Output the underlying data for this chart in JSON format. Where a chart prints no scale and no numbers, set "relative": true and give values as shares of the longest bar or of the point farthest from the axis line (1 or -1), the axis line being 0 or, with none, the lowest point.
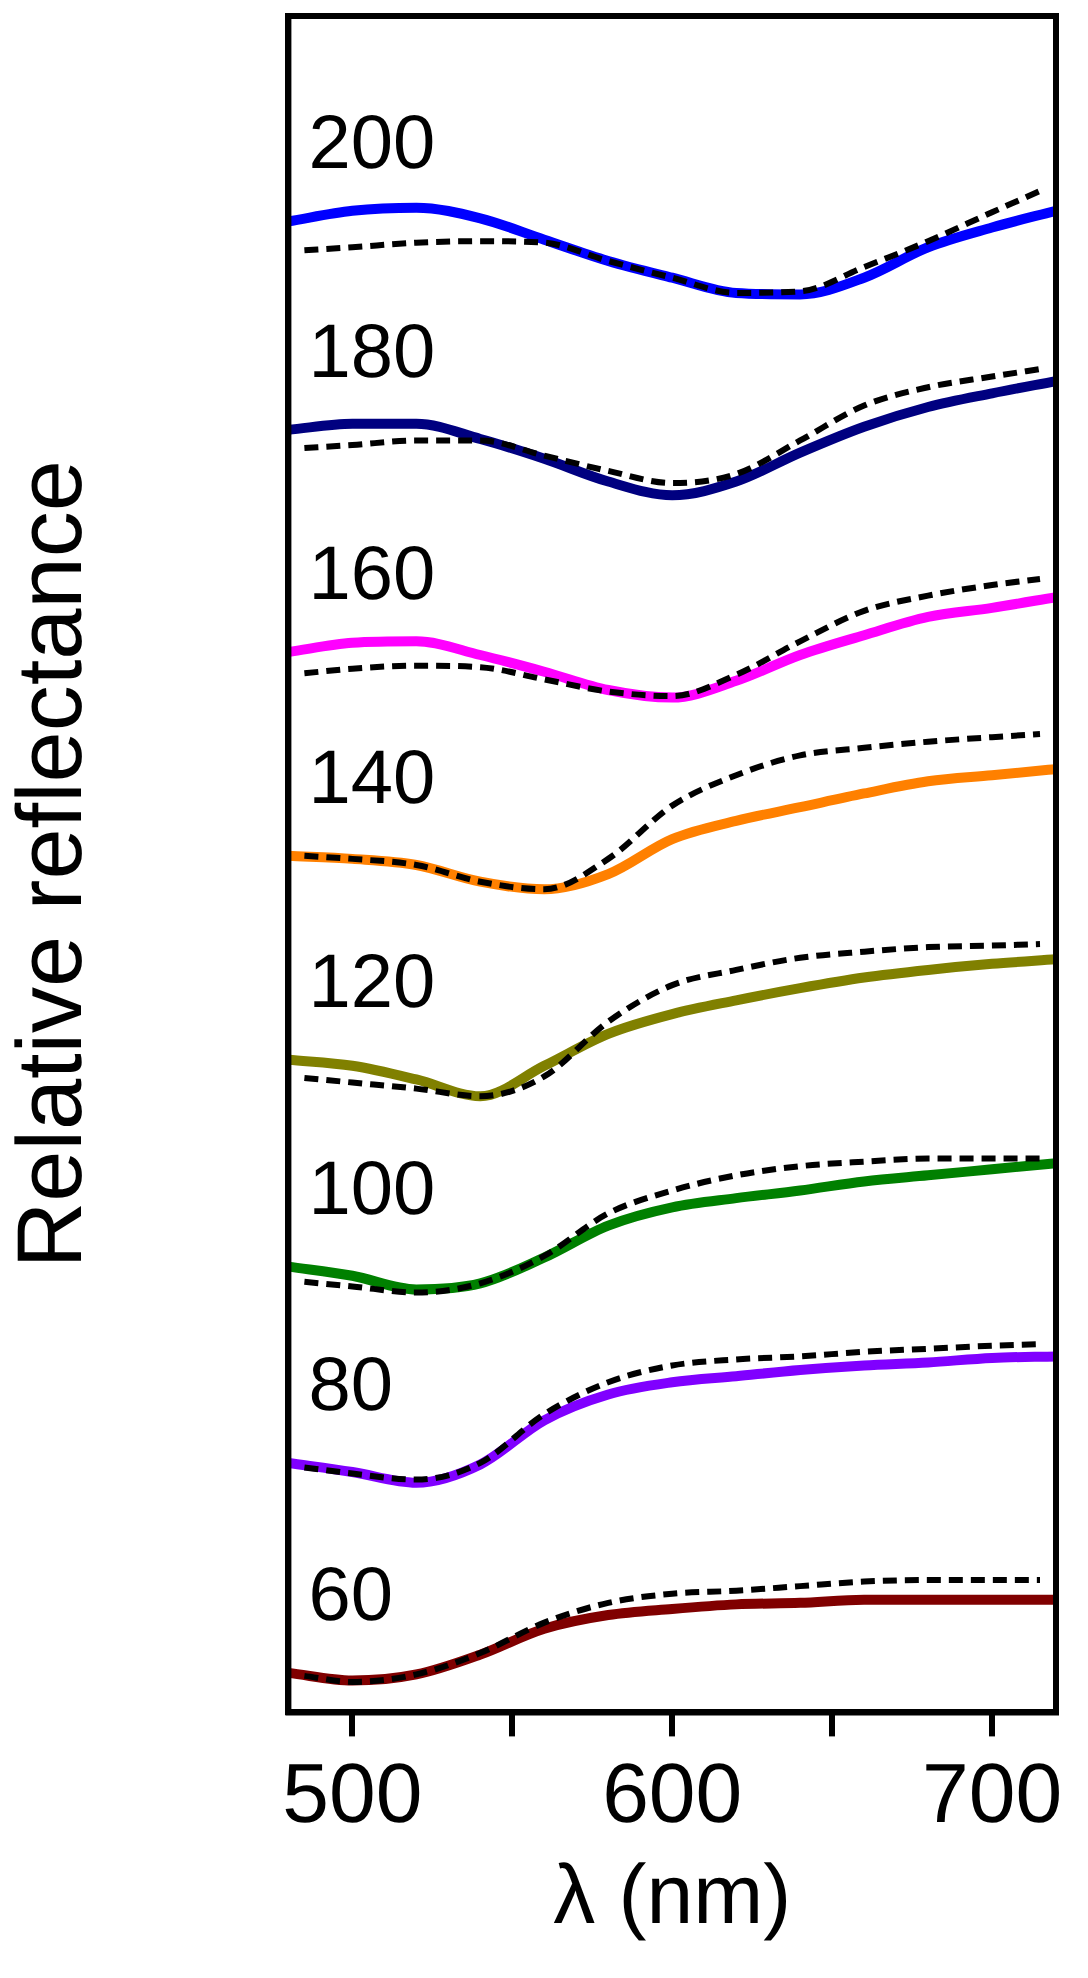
{
  "chart_data": {
    "type": "line",
    "relative": true,
    "xlabel": "λ (nm)",
    "ylabel": "Relative reflectance",
    "xlim": [
      480,
      720
    ],
    "xticks": [
      500,
      {
        "value": 550,
        "label": null
      },
      600,
      {
        "value": 650,
        "label": null
      },
      700
    ],
    "legend": false,
    "grid": false,
    "marker": "none",
    "x": [
      480,
      500,
      520,
      540,
      560,
      580,
      600,
      620,
      640,
      660,
      680,
      700,
      720
    ],
    "series": [
      {
        "name": "200",
        "color": "#0000ff",
        "line_style": "solid",
        "values": [
          0.98,
          0.987,
          0.989,
          0.982,
          0.968,
          0.954,
          0.943,
          0.933,
          0.932,
          0.943,
          0.963,
          0.976,
          0.987
        ]
      },
      {
        "color": "#000000",
        "line_style": "dashed",
        "x": [
          485,
          500,
          520,
          540,
          560,
          580,
          600,
          620,
          640,
          660,
          680,
          700,
          715
        ],
        "values": [
          0.961,
          0.963,
          0.966,
          0.967,
          0.966,
          0.954,
          0.943,
          0.933,
          0.934,
          0.95,
          0.967,
          0.986,
          1.0
        ]
      },
      {
        "name": "180",
        "color": "#000080",
        "line_style": "solid",
        "values": [
          0.843,
          0.847,
          0.847,
          0.837,
          0.824,
          0.809,
          0.8,
          0.809,
          0.828,
          0.845,
          0.858,
          0.867,
          0.875
        ]
      },
      {
        "color": "#000000",
        "line_style": "dashed",
        "x": [
          485,
          500,
          520,
          540,
          560,
          580,
          600,
          620,
          640,
          660,
          680,
          700,
          715
        ],
        "values": [
          0.831,
          0.833,
          0.836,
          0.836,
          0.826,
          0.816,
          0.808,
          0.814,
          0.836,
          0.859,
          0.871,
          0.878,
          0.883
        ]
      },
      {
        "name": "160",
        "color": "#ff00ff",
        "line_style": "solid",
        "values": [
          0.697,
          0.703,
          0.704,
          0.695,
          0.684,
          0.672,
          0.667,
          0.678,
          0.695,
          0.708,
          0.72,
          0.726,
          0.733
        ]
      },
      {
        "color": "#000000",
        "line_style": "dashed",
        "x": [
          485,
          500,
          520,
          540,
          560,
          580,
          600,
          620,
          640,
          660,
          680,
          700,
          715
        ],
        "values": [
          0.683,
          0.686,
          0.688,
          0.687,
          0.679,
          0.671,
          0.668,
          0.682,
          0.704,
          0.724,
          0.734,
          0.741,
          0.745
        ]
      },
      {
        "name": "140",
        "color": "#ff8000",
        "line_style": "solid",
        "values": [
          0.563,
          0.561,
          0.557,
          0.546,
          0.541,
          0.551,
          0.574,
          0.586,
          0.595,
          0.604,
          0.612,
          0.616,
          0.62
        ]
      },
      {
        "color": "#000000",
        "line_style": "dashed",
        "x": [
          485,
          500,
          520,
          540,
          560,
          580,
          600,
          620,
          640,
          660,
          680,
          700,
          715
        ],
        "values": [
          0.563,
          0.561,
          0.557,
          0.546,
          0.541,
          0.561,
          0.596,
          0.616,
          0.629,
          0.634,
          0.638,
          0.641,
          0.643
        ]
      },
      {
        "name": "120",
        "color": "#808000",
        "line_style": "solid",
        "values": [
          0.429,
          0.425,
          0.416,
          0.405,
          0.425,
          0.446,
          0.459,
          0.468,
          0.476,
          0.483,
          0.488,
          0.492,
          0.495
        ]
      },
      {
        "color": "#000000",
        "line_style": "dashed",
        "x": [
          485,
          500,
          520,
          540,
          560,
          580,
          600,
          620,
          640,
          660,
          680,
          700,
          715
        ],
        "values": [
          0.417,
          0.414,
          0.41,
          0.405,
          0.418,
          0.454,
          0.478,
          0.488,
          0.496,
          0.5,
          0.503,
          0.504,
          0.505
        ]
      },
      {
        "name": "100",
        "color": "#008000",
        "line_style": "solid",
        "values": [
          0.293,
          0.287,
          0.278,
          0.282,
          0.299,
          0.32,
          0.332,
          0.338,
          0.343,
          0.349,
          0.353,
          0.357,
          0.361
        ]
      },
      {
        "color": "#000000",
        "line_style": "dashed",
        "x": [
          485,
          500,
          520,
          540,
          560,
          580,
          600,
          620,
          640,
          660,
          680,
          700,
          715
        ],
        "values": [
          0.283,
          0.28,
          0.276,
          0.282,
          0.3,
          0.328,
          0.343,
          0.353,
          0.359,
          0.362,
          0.364,
          0.364,
          0.364
        ]
      },
      {
        "name": "80",
        "color": "#8000ff",
        "line_style": "solid",
        "values": [
          0.164,
          0.158,
          0.151,
          0.163,
          0.192,
          0.209,
          0.217,
          0.221,
          0.225,
          0.228,
          0.23,
          0.233,
          0.234
        ]
      },
      {
        "color": "#000000",
        "line_style": "dashed",
        "x": [
          485,
          500,
          520,
          540,
          560,
          580,
          600,
          620,
          640,
          660,
          680,
          700,
          715
        ],
        "values": [
          0.161,
          0.157,
          0.153,
          0.164,
          0.196,
          0.217,
          0.228,
          0.232,
          0.234,
          0.237,
          0.239,
          0.241,
          0.242
        ]
      },
      {
        "name": "60",
        "color": "#800000",
        "line_style": "solid",
        "values": [
          0.026,
          0.021,
          0.025,
          0.038,
          0.055,
          0.064,
          0.068,
          0.071,
          0.072,
          0.074,
          0.074,
          0.074,
          0.074
        ]
      },
      {
        "color": "#000000",
        "line_style": "dashed",
        "x": [
          485,
          500,
          520,
          540,
          560,
          580,
          600,
          620,
          640,
          660,
          680,
          700,
          715
        ],
        "values": [
          0.024,
          0.02,
          0.025,
          0.039,
          0.059,
          0.072,
          0.078,
          0.08,
          0.083,
          0.086,
          0.087,
          0.087,
          0.087
        ]
      }
    ]
  }
}
